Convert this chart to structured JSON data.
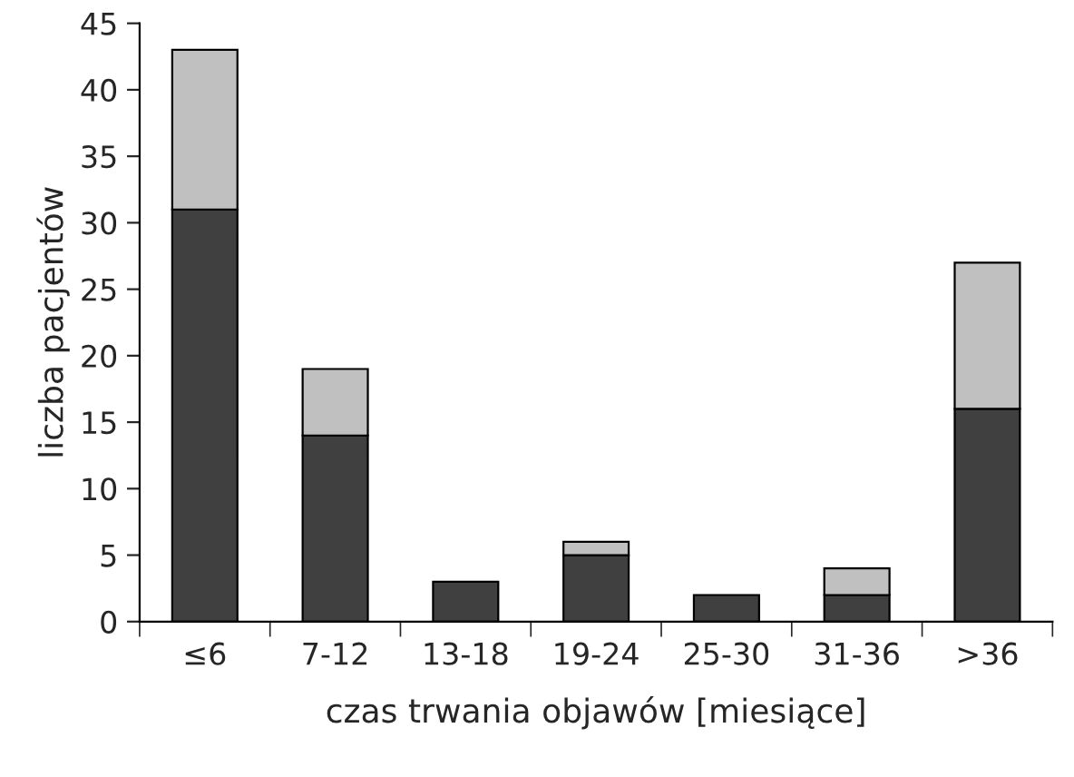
{
  "chart_data": {
    "type": "bar",
    "stacked": true,
    "xlabel": "czas trwania objawów [miesiące]",
    "ylabel": "liczba pacjentów",
    "categories": [
      "≤6",
      "7-12",
      "13-18",
      "19-24",
      "25-30",
      "31-36",
      ">36"
    ],
    "series": [
      {
        "color": "#404040",
        "values": [
          31,
          14,
          3,
          5,
          2,
          2,
          16
        ]
      },
      {
        "color": "#c0c0c0",
        "values": [
          12,
          5,
          null,
          1,
          null,
          2,
          11
        ]
      }
    ],
    "ylim": [
      0,
      45
    ],
    "yticks": [
      0,
      5,
      10,
      15,
      20,
      25,
      30,
      35,
      40,
      45
    ],
    "grid": false,
    "legend": false
  }
}
